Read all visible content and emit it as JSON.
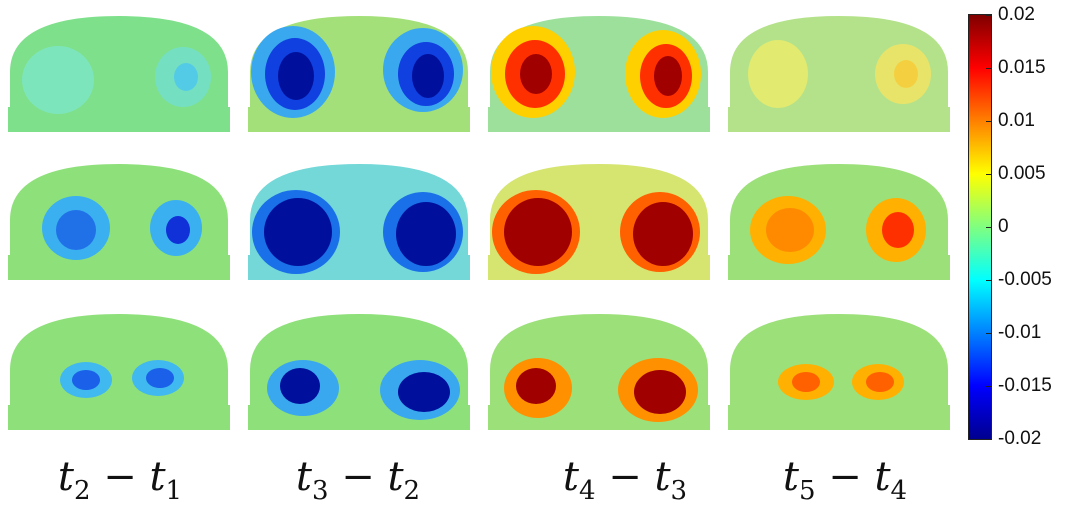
{
  "colorbar": {
    "ticks": [
      "0.02",
      "0.015",
      "0.01",
      "0.005",
      "0",
      "-0.005",
      "-0.01",
      "-0.015",
      "-0.02"
    ],
    "colors": [
      "#800000",
      "#ff0000",
      "#ff8000",
      "#ffff00",
      "#80ff80",
      "#00ffff",
      "#0080ff",
      "#0000ff",
      "#00008f"
    ]
  },
  "columns": [
    {
      "a": "t",
      "a_sub": "2",
      "op": " − ",
      "b": "t",
      "b_sub": "1"
    },
    {
      "a": "t",
      "a_sub": "3",
      "op": " − ",
      "b": "t",
      "b_sub": "2"
    },
    {
      "a": "t",
      "a_sub": "4",
      "op": " − ",
      "b": "t",
      "b_sub": "3"
    },
    {
      "a": "t",
      "a_sub": "5",
      "op": " − ",
      "b": "t",
      "b_sub": "4"
    }
  ],
  "background_color": "#8ee07a"
}
